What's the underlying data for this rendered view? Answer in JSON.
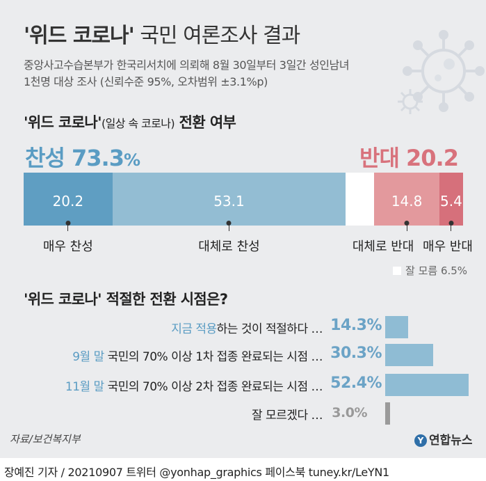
{
  "header": {
    "title_bold": "'위드 코로나'",
    "title_rest": " 국민 여론조사 결과",
    "subtitle_line1": "중앙사고수습본부가 한국리서치에 의뢰해 8월 30일부터 3일간 성인남녀",
    "subtitle_line2": "1천명 대상 조사 (신뢰수준 95%, 오차범위 ±3.1%p)"
  },
  "section1": {
    "title_main": "'위드 코로나'",
    "title_small": "(일상 속 코로나)",
    "title_end": " 전환 여부",
    "agree_label": "찬성 73.3",
    "agree_pct": "%",
    "oppose_label": "반대 20.2"
  },
  "section2": {
    "title": "'위드 코로나' 적절한 전환 시점은?"
  },
  "chart_data": [
    {
      "type": "bar",
      "orientation": "horizontal-stacked",
      "title": "'위드 코로나'(일상 속 코로나) 전환 여부",
      "categories": [
        "매우 찬성",
        "대체로 찬성",
        "잘 모름",
        "대체로 반대",
        "매우 반대"
      ],
      "values": [
        20.2,
        53.1,
        6.5,
        14.8,
        5.4
      ],
      "value_labels": [
        "20.2",
        "53.1",
        "",
        "14.8",
        "5.4"
      ],
      "colors": [
        "#5f9ec2",
        "#93bdd3",
        "#ffffff",
        "#e3999d",
        "#d6707b"
      ],
      "totals": {
        "agree": 73.3,
        "oppose": 20.2
      },
      "legend": {
        "label": "잘 모름",
        "value": "6.5%"
      }
    },
    {
      "type": "bar",
      "orientation": "horizontal",
      "title": "'위드 코로나' 적절한 전환 시점은?",
      "categories": [
        {
          "hl": "지금 적용",
          "rest": "하는 것이 적절하다 …"
        },
        {
          "hl": "9월 말",
          "rest": " 국민의 70% 이상 1차 접종 완료되는 시점 …"
        },
        {
          "hl": "11월 말",
          "rest": " 국민의 70% 이상 2차 접종 완료되는 시점 …"
        },
        {
          "hl": "",
          "rest": "잘 모르겠다 …"
        }
      ],
      "values": [
        14.3,
        30.3,
        52.4,
        3.0
      ],
      "value_labels": [
        "14.3%",
        "30.3%",
        "52.4%",
        "3.0%"
      ],
      "colors": [
        "#8fbcd4",
        "#8fbcd4",
        "#8fbcd4",
        "#9a9a9a"
      ]
    }
  ],
  "source": "자료/보건복지부",
  "logo": {
    "mark": "Y",
    "text": "연합뉴스"
  },
  "footer": "장예진 기자 / 20210907 트위터 @yonhap_graphics  페이스북 tuney.kr/LeYN1"
}
